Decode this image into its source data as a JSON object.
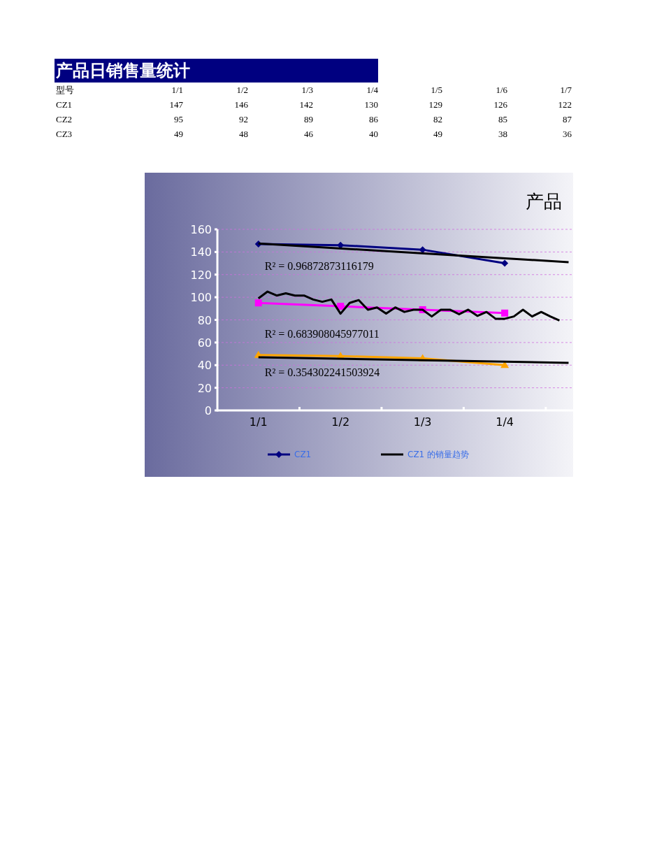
{
  "chart_data": [
    {
      "type": "other",
      "title": "产品日销售量统计",
      "legend_title": "型号",
      "categories": [
        "1/1",
        "1/2",
        "1/3",
        "1/4",
        "1/5",
        "1/6",
        "1/7"
      ],
      "data_labels": true,
      "series": [
        {
          "name": "CZ1",
          "values": [
            147,
            146,
            142,
            130,
            129,
            126,
            122
          ]
        },
        {
          "name": "CZ2",
          "values": [
            95,
            92,
            89,
            86,
            82,
            85,
            87
          ]
        },
        {
          "name": "CZ3",
          "values": [
            49,
            48,
            46,
            40,
            49,
            38,
            36
          ]
        }
      ]
    },
    {
      "type": "line",
      "title": "产品",
      "ylim": [
        0,
        160
      ],
      "yticks": [
        0,
        20,
        40,
        60,
        80,
        100,
        120,
        140,
        160
      ],
      "categories": [
        null,
        null,
        null,
        null,
        "1/1",
        null,
        null,
        null,
        null,
        null,
        null,
        null,
        null,
        "1/2",
        null,
        null,
        null,
        null,
        null,
        null,
        null,
        null,
        "1/3",
        null,
        null,
        null,
        null,
        null,
        null,
        null,
        null,
        "1/4",
        null,
        null,
        null,
        null,
        null,
        null,
        null
      ],
      "grid": "y",
      "legend": "bottom",
      "annotations": [
        "R² = 0.96872873116179",
        "R² = 0.683908045977011",
        "R² = 0.354302241503924"
      ],
      "series": [
        {
          "name": "CZ1",
          "color": "#000080",
          "marker": "diamond",
          "values": [
            null,
            null,
            null,
            null,
            147,
            null,
            null,
            null,
            null,
            null,
            null,
            null,
            null,
            146,
            null,
            null,
            null,
            null,
            null,
            null,
            null,
            null,
            142,
            null,
            null,
            null,
            null,
            null,
            null,
            null,
            null,
            130,
            null,
            null,
            null,
            null,
            null,
            null,
            null
          ]
        },
        {
          "name": "CZ1 的销量趋势",
          "color": "#000000",
          "marker": "none",
          "values": [
            null,
            null,
            null,
            null,
            147.5,
            null,
            null,
            null,
            null,
            null,
            null,
            null,
            null,
            null,
            null,
            null,
            null,
            null,
            null,
            null,
            null,
            null,
            null,
            null,
            null,
            null,
            null,
            null,
            null,
            null,
            null,
            null,
            null,
            null,
            null,
            null,
            null,
            null,
            131
          ]
        },
        {
          "color": "#ff00ff",
          "marker": "square",
          "values": [
            null,
            null,
            null,
            null,
            95,
            null,
            null,
            null,
            null,
            null,
            null,
            null,
            null,
            92,
            null,
            null,
            null,
            null,
            null,
            null,
            null,
            null,
            89,
            null,
            null,
            null,
            null,
            null,
            null,
            null,
            null,
            86,
            null,
            null,
            null,
            null,
            null,
            null,
            null
          ]
        },
        {
          "color": "#000000",
          "marker": "none",
          "values": [
            null,
            null,
            null,
            null,
            99,
            105,
            101.5,
            103.5,
            101.5,
            101.5,
            98,
            96,
            98,
            85.5,
            95,
            97.5,
            89,
            91,
            85.5,
            91,
            87,
            89,
            89,
            83,
            89,
            89,
            85,
            89,
            83.5,
            87,
            81,
            81,
            83,
            89,
            83,
            87,
            83,
            79.5,
            null
          ]
        },
        {
          "color": "#ffa500",
          "marker": "triangle",
          "values": [
            null,
            null,
            null,
            null,
            49,
            null,
            null,
            null,
            null,
            null,
            null,
            null,
            null,
            48,
            null,
            null,
            null,
            null,
            null,
            null,
            null,
            null,
            46,
            null,
            null,
            null,
            null,
            null,
            null,
            null,
            null,
            40,
            null,
            null,
            null,
            null,
            null,
            null,
            null
          ]
        },
        {
          "color": "#000000",
          "marker": "none",
          "values": [
            null,
            null,
            null,
            null,
            47,
            null,
            null,
            null,
            null,
            null,
            null,
            null,
            null,
            null,
            null,
            null,
            null,
            null,
            null,
            null,
            null,
            null,
            null,
            null,
            null,
            null,
            null,
            null,
            null,
            null,
            null,
            null,
            null,
            null,
            null,
            null,
            null,
            null,
            42
          ]
        }
      ]
    }
  ]
}
